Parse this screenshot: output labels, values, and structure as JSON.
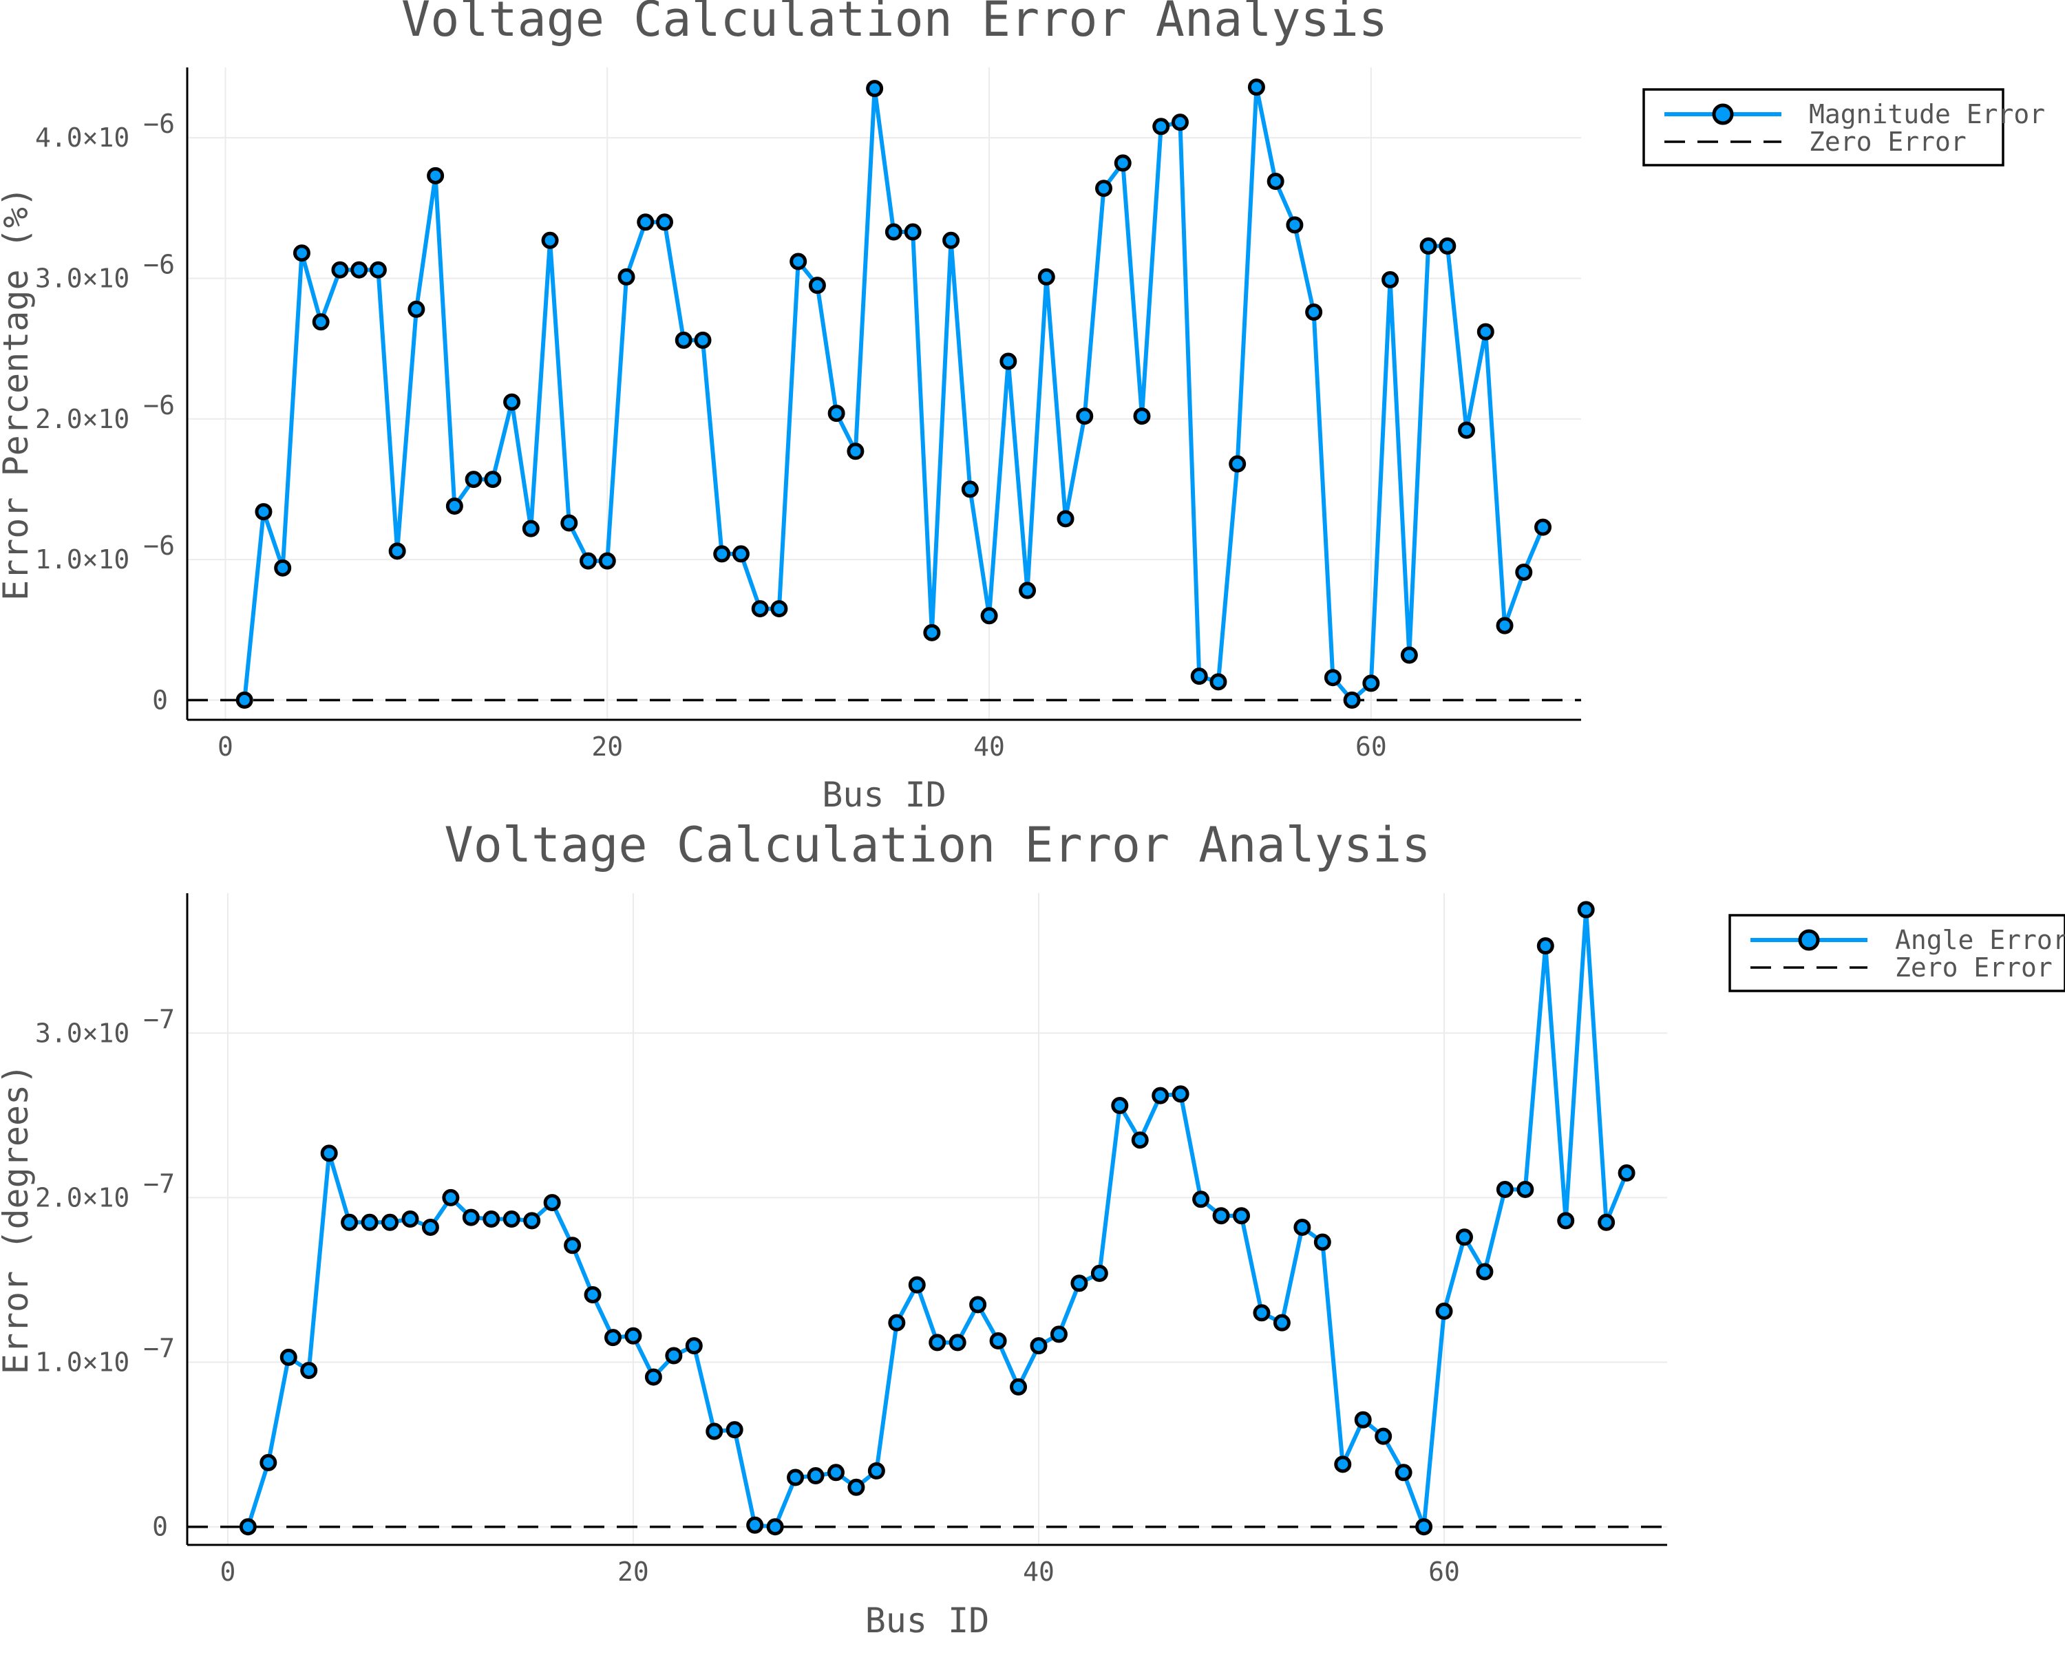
{
  "chart_data": [
    {
      "type": "line",
      "title": "Voltage Calculation Error Analysis",
      "xlabel": "Bus ID",
      "ylabel": "Error Percentage (%)",
      "xlim": [
        -2,
        71
      ],
      "ylim": [
        -1.4e-07,
        4.5e-06
      ],
      "xticks": [
        0,
        20,
        40,
        60
      ],
      "xtick_labels": [
        "0",
        "20",
        "40",
        "60"
      ],
      "yticks": [
        0,
        1e-06,
        2e-06,
        3e-06,
        4e-06
      ],
      "ytick_labels": [
        "0",
        "1.0×10",
        "2.0×10",
        "3.0×10",
        "4.0×10"
      ],
      "ytick_exponents": [
        "",
        "−6",
        "−6",
        "−6",
        "−6"
      ],
      "grid": true,
      "legend_position": "outer top-right",
      "colors": {
        "series": "#009af9",
        "zero": "#000000"
      },
      "series": [
        {
          "name": "Magnitude Error",
          "style": "solid line with circle markers",
          "x": [
            1,
            2,
            3,
            4,
            5,
            6,
            7,
            8,
            9,
            10,
            11,
            12,
            13,
            14,
            15,
            16,
            17,
            18,
            19,
            20,
            21,
            22,
            23,
            24,
            25,
            26,
            27,
            28,
            29,
            30,
            31,
            32,
            33,
            34,
            35,
            36,
            37,
            38,
            39,
            40,
            41,
            42,
            43,
            44,
            45,
            46,
            47,
            48,
            49,
            50,
            51,
            52,
            53,
            54,
            55,
            56,
            57,
            58,
            59,
            60,
            61,
            62,
            63,
            64,
            65,
            66,
            67,
            68,
            69
          ],
          "values": [
            0.0,
            1.34e-06,
            9.4e-07,
            3.18e-06,
            2.69e-06,
            3.06e-06,
            3.06e-06,
            3.06e-06,
            1.06e-06,
            2.78e-06,
            3.73e-06,
            1.38e-06,
            1.57e-06,
            1.57e-06,
            2.12e-06,
            1.22e-06,
            3.27e-06,
            1.26e-06,
            9.9e-07,
            9.9e-07,
            3.01e-06,
            3.4e-06,
            3.4e-06,
            2.56e-06,
            2.56e-06,
            1.04e-06,
            1.04e-06,
            6.5e-07,
            6.5e-07,
            3.12e-06,
            2.95e-06,
            2.04e-06,
            1.77e-06,
            4.35e-06,
            3.33e-06,
            3.33e-06,
            4.8e-07,
            3.27e-06,
            1.5e-06,
            6e-07,
            2.41e-06,
            7.8e-07,
            3.01e-06,
            1.29e-06,
            2.02e-06,
            3.64e-06,
            3.82e-06,
            2.02e-06,
            4.08e-06,
            4.11e-06,
            1.7e-07,
            1.3e-07,
            1.68e-06,
            4.36e-06,
            3.69e-06,
            3.38e-06,
            2.76e-06,
            1.6e-07,
            0.0,
            1.2e-07,
            2.99e-06,
            3.2e-07,
            3.23e-06,
            3.23e-06,
            1.92e-06,
            2.62e-06,
            5.3e-07,
            9.1e-07,
            1.23e-06
          ]
        },
        {
          "name": "Zero Error",
          "style": "dashed horizontal line",
          "x": [
            -2,
            71
          ],
          "values": [
            0,
            0
          ]
        }
      ]
    },
    {
      "type": "line",
      "title": "Voltage Calculation Error Analysis",
      "xlabel": "Bus ID",
      "ylabel": "Error (degrees)",
      "xlim": [
        -2,
        71
      ],
      "ylim": [
        -1.1e-08,
        3.85e-07
      ],
      "xticks": [
        0,
        20,
        40,
        60
      ],
      "xtick_labels": [
        "0",
        "20",
        "40",
        "60"
      ],
      "yticks": [
        0,
        1e-07,
        2e-07,
        3e-07
      ],
      "ytick_labels": [
        "0",
        "1.0×10",
        "2.0×10",
        "3.0×10"
      ],
      "ytick_exponents": [
        "",
        "−7",
        "−7",
        "−7"
      ],
      "grid": true,
      "legend_position": "outer top-right",
      "colors": {
        "series": "#009af9",
        "zero": "#000000"
      },
      "series": [
        {
          "name": "Angle Error",
          "style": "solid line with circle markers",
          "x": [
            1,
            2,
            3,
            4,
            5,
            6,
            7,
            8,
            9,
            10,
            11,
            12,
            13,
            14,
            15,
            16,
            17,
            18,
            19,
            20,
            21,
            22,
            23,
            24,
            25,
            26,
            27,
            28,
            29,
            30,
            31,
            32,
            33,
            34,
            35,
            36,
            37,
            38,
            39,
            40,
            41,
            42,
            43,
            44,
            45,
            46,
            47,
            48,
            49,
            50,
            51,
            52,
            53,
            54,
            55,
            56,
            57,
            58,
            59,
            60,
            61,
            62,
            63,
            64,
            65,
            66,
            67,
            68,
            69
          ],
          "values": [
            0.0,
            3.9e-08,
            1.03e-07,
            9.5e-08,
            2.27e-07,
            1.85e-07,
            1.85e-07,
            1.85e-07,
            1.87e-07,
            1.82e-07,
            2e-07,
            1.88e-07,
            1.87e-07,
            1.87e-07,
            1.86e-07,
            1.97e-07,
            1.71e-07,
            1.41e-07,
            1.15e-07,
            1.16e-07,
            9.1e-08,
            1.04e-07,
            1.1e-07,
            5.8e-08,
            5.9e-08,
            1e-09,
            0.0,
            3e-08,
            3.1e-08,
            3.3e-08,
            2.4e-08,
            3.4e-08,
            1.24e-07,
            1.47e-07,
            1.12e-07,
            1.12e-07,
            1.35e-07,
            1.13e-07,
            8.5e-08,
            1.1e-07,
            1.17e-07,
            1.48e-07,
            1.54e-07,
            2.56e-07,
            2.35e-07,
            2.62e-07,
            2.63e-07,
            1.99e-07,
            1.89e-07,
            1.89e-07,
            1.3e-07,
            1.24e-07,
            1.82e-07,
            1.73e-07,
            3.8e-08,
            6.5e-08,
            5.5e-08,
            3.3e-08,
            0.0,
            1.31e-07,
            1.76e-07,
            1.55e-07,
            2.05e-07,
            2.05e-07,
            3.53e-07,
            1.86e-07,
            3.75e-07,
            1.85e-07,
            2.15e-07
          ]
        },
        {
          "name": "Zero Error",
          "style": "dashed horizontal line",
          "x": [
            -2,
            71
          ],
          "values": [
            0,
            0
          ]
        }
      ]
    }
  ]
}
